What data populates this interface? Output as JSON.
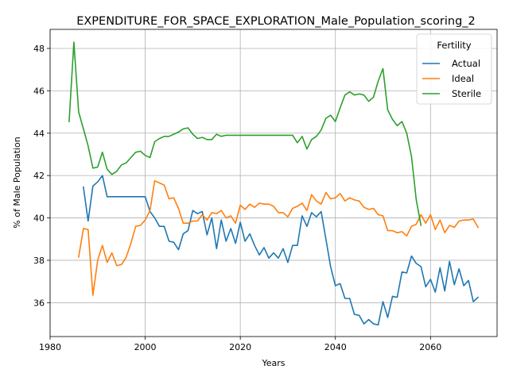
{
  "chart_data": {
    "type": "line",
    "title": "EXPENDITURE_FOR_SPACE_EXPLORATION_Male_Population_scoring_2",
    "xlabel": "Years",
    "ylabel": "% of Male Population",
    "xlim": [
      1980,
      2074
    ],
    "ylim": [
      34.4,
      48.9
    ],
    "x_ticks": [
      1980,
      2000,
      2020,
      2040,
      2060
    ],
    "x_tick_labels": [
      "1980",
      "2000",
      "2020",
      "2040",
      "2060"
    ],
    "y_ticks": [
      36,
      38,
      40,
      42,
      44,
      46,
      48
    ],
    "y_tick_labels": [
      "36",
      "38",
      "40",
      "42",
      "44",
      "46",
      "48"
    ],
    "grid": true,
    "legend": {
      "title": "Fertility",
      "placement": "top-right"
    },
    "colors": {
      "Actual": "#1f77b4",
      "Ideal": "#ff7f0e",
      "Sterile": "#2ca02c"
    },
    "series": [
      {
        "name": "Actual",
        "points": [
          [
            1987,
            41.45
          ],
          [
            1988,
            39.85
          ],
          [
            1989,
            41.5
          ],
          [
            1990,
            41.7
          ],
          [
            1991,
            42.0
          ],
          [
            1992,
            41.0
          ],
          [
            1995,
            41.0
          ],
          [
            2000,
            41.0
          ],
          [
            2001,
            40.3
          ],
          [
            2002,
            40.0
          ],
          [
            2003,
            39.6
          ],
          [
            2004,
            39.6
          ],
          [
            2005,
            38.9
          ],
          [
            2006,
            38.85
          ],
          [
            2007,
            38.5
          ],
          [
            2008,
            39.25
          ],
          [
            2009,
            39.4
          ],
          [
            2010,
            40.35
          ],
          [
            2011,
            40.2
          ],
          [
            2012,
            40.3
          ],
          [
            2013,
            39.2
          ],
          [
            2014,
            40.0
          ],
          [
            2015,
            38.55
          ],
          [
            2016,
            39.9
          ],
          [
            2017,
            38.9
          ],
          [
            2018,
            39.5
          ],
          [
            2019,
            38.8
          ],
          [
            2020,
            39.8
          ],
          [
            2021,
            38.9
          ],
          [
            2022,
            39.25
          ],
          [
            2023,
            38.7
          ],
          [
            2024,
            38.25
          ],
          [
            2025,
            38.6
          ],
          [
            2026,
            38.1
          ],
          [
            2027,
            38.35
          ],
          [
            2028,
            38.1
          ],
          [
            2029,
            38.55
          ],
          [
            2030,
            37.9
          ],
          [
            2031,
            38.7
          ],
          [
            2032,
            38.7
          ],
          [
            2033,
            40.1
          ],
          [
            2034,
            39.6
          ],
          [
            2035,
            40.25
          ],
          [
            2036,
            40.05
          ],
          [
            2037,
            40.3
          ],
          [
            2038,
            39.0
          ],
          [
            2039,
            37.7
          ],
          [
            2040,
            36.8
          ],
          [
            2041,
            36.9
          ],
          [
            2042,
            36.2
          ],
          [
            2043,
            36.2
          ],
          [
            2044,
            35.45
          ],
          [
            2045,
            35.4
          ],
          [
            2046,
            35.0
          ],
          [
            2047,
            35.2
          ],
          [
            2048,
            35.0
          ],
          [
            2049,
            34.95
          ],
          [
            2050,
            36.05
          ],
          [
            2051,
            35.3
          ],
          [
            2052,
            36.3
          ],
          [
            2053,
            36.25
          ],
          [
            2054,
            37.45
          ],
          [
            2055,
            37.4
          ],
          [
            2056,
            38.2
          ],
          [
            2057,
            37.85
          ],
          [
            2058,
            37.7
          ],
          [
            2059,
            36.75
          ],
          [
            2060,
            37.1
          ],
          [
            2061,
            36.5
          ],
          [
            2062,
            37.65
          ],
          [
            2063,
            36.55
          ],
          [
            2064,
            37.95
          ],
          [
            2065,
            36.85
          ],
          [
            2066,
            37.6
          ],
          [
            2067,
            36.8
          ],
          [
            2068,
            37.05
          ],
          [
            2069,
            36.05
          ],
          [
            2070,
            36.25
          ]
        ]
      },
      {
        "name": "Ideal",
        "points": [
          [
            1986,
            38.15
          ],
          [
            1987,
            39.5
          ],
          [
            1988,
            39.45
          ],
          [
            1989,
            36.35
          ],
          [
            1990,
            38.0
          ],
          [
            1991,
            38.7
          ],
          [
            1992,
            37.9
          ],
          [
            1993,
            38.35
          ],
          [
            1994,
            37.75
          ],
          [
            1995,
            37.8
          ],
          [
            1996,
            38.15
          ],
          [
            1997,
            38.8
          ],
          [
            1998,
            39.6
          ],
          [
            1999,
            39.65
          ],
          [
            2000,
            39.9
          ],
          [
            2001,
            40.35
          ],
          [
            2002,
            41.75
          ],
          [
            2003,
            41.65
          ],
          [
            2004,
            41.55
          ],
          [
            2005,
            40.9
          ],
          [
            2006,
            40.95
          ],
          [
            2007,
            40.45
          ],
          [
            2008,
            39.75
          ],
          [
            2009,
            39.75
          ],
          [
            2010,
            39.85
          ],
          [
            2011,
            39.85
          ],
          [
            2012,
            40.15
          ],
          [
            2013,
            39.9
          ],
          [
            2014,
            40.25
          ],
          [
            2015,
            40.2
          ],
          [
            2016,
            40.35
          ],
          [
            2017,
            40.0
          ],
          [
            2018,
            40.1
          ],
          [
            2019,
            39.75
          ],
          [
            2020,
            40.6
          ],
          [
            2021,
            40.4
          ],
          [
            2022,
            40.65
          ],
          [
            2023,
            40.5
          ],
          [
            2024,
            40.7
          ],
          [
            2025,
            40.65
          ],
          [
            2026,
            40.65
          ],
          [
            2027,
            40.55
          ],
          [
            2028,
            40.25
          ],
          [
            2029,
            40.25
          ],
          [
            2030,
            40.05
          ],
          [
            2031,
            40.45
          ],
          [
            2032,
            40.55
          ],
          [
            2033,
            40.7
          ],
          [
            2034,
            40.35
          ],
          [
            2035,
            41.1
          ],
          [
            2036,
            40.8
          ],
          [
            2037,
            40.65
          ],
          [
            2038,
            41.2
          ],
          [
            2039,
            40.9
          ],
          [
            2040,
            40.95
          ],
          [
            2041,
            41.15
          ],
          [
            2042,
            40.8
          ],
          [
            2043,
            40.95
          ],
          [
            2044,
            40.85
          ],
          [
            2045,
            40.8
          ],
          [
            2046,
            40.5
          ],
          [
            2047,
            40.4
          ],
          [
            2048,
            40.45
          ],
          [
            2049,
            40.15
          ],
          [
            2050,
            40.1
          ],
          [
            2051,
            39.4
          ],
          [
            2052,
            39.4
          ],
          [
            2053,
            39.3
          ],
          [
            2054,
            39.35
          ],
          [
            2055,
            39.15
          ],
          [
            2056,
            39.6
          ],
          [
            2057,
            39.7
          ],
          [
            2058,
            40.15
          ],
          [
            2059,
            39.75
          ],
          [
            2060,
            40.15
          ],
          [
            2061,
            39.45
          ],
          [
            2062,
            39.9
          ],
          [
            2063,
            39.3
          ],
          [
            2064,
            39.65
          ],
          [
            2065,
            39.55
          ],
          [
            2066,
            39.85
          ],
          [
            2067,
            39.9
          ],
          [
            2068,
            39.9
          ],
          [
            2069,
            39.95
          ],
          [
            2070,
            39.55
          ]
        ]
      },
      {
        "name": "Sterile",
        "points": [
          [
            1984,
            44.55
          ],
          [
            1985,
            48.3
          ],
          [
            1986,
            45.0
          ],
          [
            1987,
            44.2
          ],
          [
            1988,
            43.4
          ],
          [
            1989,
            42.35
          ],
          [
            1990,
            42.4
          ],
          [
            1991,
            43.1
          ],
          [
            1992,
            42.3
          ],
          [
            1993,
            42.05
          ],
          [
            1994,
            42.2
          ],
          [
            1995,
            42.5
          ],
          [
            1996,
            42.6
          ],
          [
            1997,
            42.85
          ],
          [
            1998,
            43.1
          ],
          [
            1999,
            43.15
          ],
          [
            2000,
            42.95
          ],
          [
            2001,
            42.85
          ],
          [
            2002,
            43.6
          ],
          [
            2003,
            43.75
          ],
          [
            2004,
            43.85
          ],
          [
            2005,
            43.85
          ],
          [
            2006,
            43.95
          ],
          [
            2007,
            44.05
          ],
          [
            2008,
            44.2
          ],
          [
            2009,
            44.25
          ],
          [
            2010,
            43.95
          ],
          [
            2011,
            43.75
          ],
          [
            2012,
            43.8
          ],
          [
            2013,
            43.7
          ],
          [
            2014,
            43.7
          ],
          [
            2015,
            43.95
          ],
          [
            2016,
            43.85
          ],
          [
            2017,
            43.9
          ],
          [
            2018,
            43.9
          ],
          [
            2020,
            43.9
          ],
          [
            2025,
            43.9
          ],
          [
            2031,
            43.9
          ],
          [
            2032,
            43.55
          ],
          [
            2033,
            43.85
          ],
          [
            2034,
            43.25
          ],
          [
            2035,
            43.7
          ],
          [
            2036,
            43.85
          ],
          [
            2037,
            44.15
          ],
          [
            2038,
            44.7
          ],
          [
            2039,
            44.85
          ],
          [
            2040,
            44.55
          ],
          [
            2041,
            45.2
          ],
          [
            2042,
            45.8
          ],
          [
            2043,
            45.95
          ],
          [
            2044,
            45.8
          ],
          [
            2045,
            45.85
          ],
          [
            2046,
            45.8
          ],
          [
            2047,
            45.5
          ],
          [
            2048,
            45.7
          ],
          [
            2049,
            46.45
          ],
          [
            2050,
            47.05
          ],
          [
            2051,
            45.1
          ],
          [
            2052,
            44.65
          ],
          [
            2053,
            44.35
          ],
          [
            2054,
            44.55
          ],
          [
            2055,
            44.0
          ],
          [
            2056,
            42.9
          ],
          [
            2057,
            40.85
          ],
          [
            2058,
            39.65
          ]
        ]
      }
    ]
  }
}
